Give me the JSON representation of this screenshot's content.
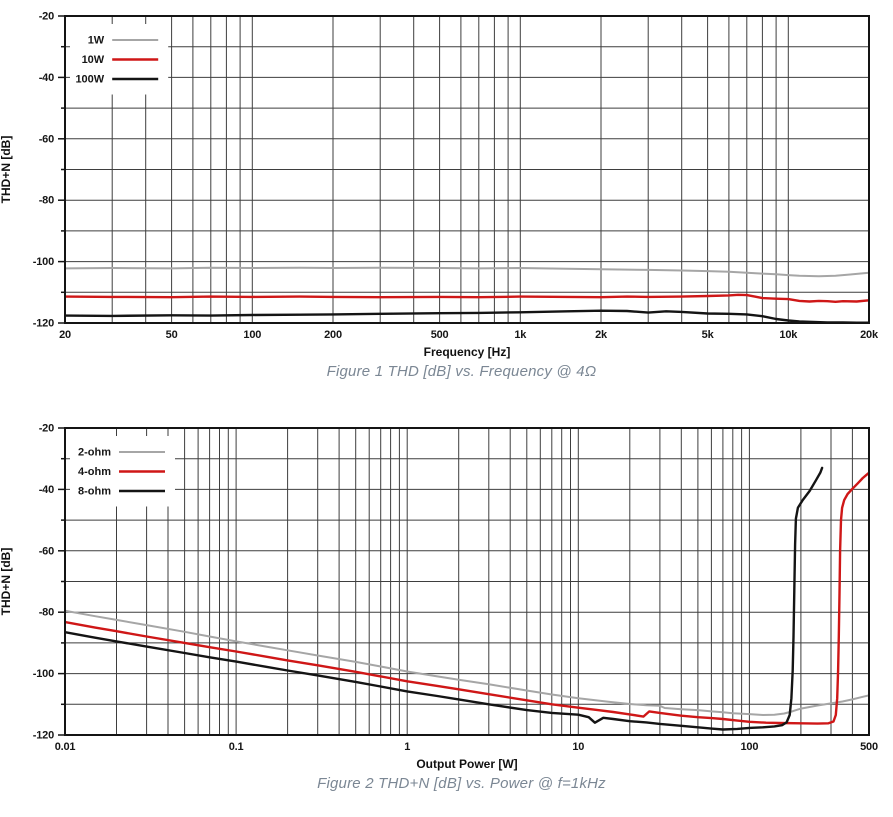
{
  "page_background": "#ffffff",
  "chart_data": [
    {
      "type": "line",
      "caption": "Figure 1 THD [dB] vs. Frequency @ 4Ω",
      "xlabel": "Frequency [Hz]",
      "ylabel": "THD+N [dB]",
      "x_scale": "log",
      "xlim": [
        20,
        20000
      ],
      "ylim": [
        -120,
        -20
      ],
      "grid": true,
      "y_grid_step": 10,
      "legend_position": "top-left",
      "grid_color": "#3e3e3e",
      "axis_color": "#141414",
      "x_ticks": [
        {
          "value": 20,
          "label": "20"
        },
        {
          "value": 50,
          "label": "50"
        },
        {
          "value": 100,
          "label": "100"
        },
        {
          "value": 200,
          "label": "200"
        },
        {
          "value": 500,
          "label": "500"
        },
        {
          "value": 1000,
          "label": "1k"
        },
        {
          "value": 2000,
          "label": "2k"
        },
        {
          "value": 5000,
          "label": "5k"
        },
        {
          "value": 10000,
          "label": "10k"
        },
        {
          "value": 20000,
          "label": "20k"
        }
      ],
      "y_ticks": [
        {
          "value": -20,
          "label": "-20"
        },
        {
          "value": -40,
          "label": "-40"
        },
        {
          "value": -60,
          "label": "-60"
        },
        {
          "value": -80,
          "label": "-80"
        },
        {
          "value": -100,
          "label": "-100"
        },
        {
          "value": -120,
          "label": "-120"
        }
      ],
      "series": [
        {
          "name": "1W",
          "color": "#a6a6a6",
          "width": 2,
          "points": [
            [
              20,
              -102.2
            ],
            [
              30,
              -102.1
            ],
            [
              50,
              -102.2
            ],
            [
              70,
              -102.0
            ],
            [
              100,
              -102.1
            ],
            [
              150,
              -102.0
            ],
            [
              200,
              -102.1
            ],
            [
              300,
              -102.0
            ],
            [
              500,
              -102.1
            ],
            [
              700,
              -102.2
            ],
            [
              1000,
              -102.1
            ],
            [
              1500,
              -102.3
            ],
            [
              2000,
              -102.5
            ],
            [
              3000,
              -102.7
            ],
            [
              4000,
              -102.9
            ],
            [
              5000,
              -103.1
            ],
            [
              6000,
              -103.3
            ],
            [
              7000,
              -103.6
            ],
            [
              8000,
              -103.9
            ],
            [
              9000,
              -104.1
            ],
            [
              10000,
              -104.4
            ],
            [
              11000,
              -104.6
            ],
            [
              13000,
              -104.8
            ],
            [
              15000,
              -104.6
            ],
            [
              17000,
              -104.2
            ],
            [
              20000,
              -103.6
            ]
          ]
        },
        {
          "name": "10W",
          "color": "#cf1717",
          "width": 2.4,
          "points": [
            [
              20,
              -111.4
            ],
            [
              30,
              -111.5
            ],
            [
              50,
              -111.6
            ],
            [
              70,
              -111.4
            ],
            [
              100,
              -111.5
            ],
            [
              150,
              -111.4
            ],
            [
              200,
              -111.5
            ],
            [
              300,
              -111.6
            ],
            [
              500,
              -111.5
            ],
            [
              700,
              -111.6
            ],
            [
              1000,
              -111.4
            ],
            [
              1500,
              -111.5
            ],
            [
              2000,
              -111.6
            ],
            [
              2500,
              -111.4
            ],
            [
              3000,
              -111.5
            ],
            [
              4000,
              -111.4
            ],
            [
              5000,
              -111.2
            ],
            [
              6000,
              -111.0
            ],
            [
              6500,
              -110.8
            ],
            [
              7000,
              -110.9
            ],
            [
              7500,
              -111.4
            ],
            [
              8000,
              -111.9
            ],
            [
              9000,
              -112.1
            ],
            [
              10000,
              -112.2
            ],
            [
              11000,
              -112.8
            ],
            [
              12000,
              -113.0
            ],
            [
              13000,
              -112.8
            ],
            [
              14000,
              -112.9
            ],
            [
              15000,
              -113.1
            ],
            [
              16000,
              -112.9
            ],
            [
              18000,
              -113.0
            ],
            [
              20000,
              -112.6
            ]
          ]
        },
        {
          "name": "100W",
          "color": "#141414",
          "width": 2.4,
          "points": [
            [
              20,
              -117.6
            ],
            [
              30,
              -117.7
            ],
            [
              50,
              -117.5
            ],
            [
              70,
              -117.6
            ],
            [
              100,
              -117.4
            ],
            [
              150,
              -117.3
            ],
            [
              200,
              -117.2
            ],
            [
              300,
              -117.0
            ],
            [
              500,
              -116.8
            ],
            [
              700,
              -116.7
            ],
            [
              1000,
              -116.5
            ],
            [
              1500,
              -116.2
            ],
            [
              2000,
              -116.0
            ],
            [
              2500,
              -116.1
            ],
            [
              3000,
              -116.6
            ],
            [
              3500,
              -116.2
            ],
            [
              4000,
              -116.4
            ],
            [
              5000,
              -116.9
            ],
            [
              6000,
              -117.0
            ],
            [
              7000,
              -117.2
            ],
            [
              8000,
              -117.8
            ],
            [
              9000,
              -118.7
            ],
            [
              10000,
              -119.2
            ],
            [
              11000,
              -119.5
            ],
            [
              12000,
              -119.6
            ],
            [
              14000,
              -119.8
            ],
            [
              16000,
              -119.8
            ],
            [
              18000,
              -119.9
            ],
            [
              20000,
              -119.9
            ]
          ]
        }
      ]
    },
    {
      "type": "line",
      "caption": "Figure 2 THD+N [dB] vs. Power @ f=1kHz",
      "xlabel": "Output Power [W]",
      "ylabel": "THD+N [dB]",
      "x_scale": "log",
      "xlim": [
        0.01,
        500
      ],
      "ylim": [
        -120,
        -20
      ],
      "grid": true,
      "y_grid_step": 10,
      "legend_position": "top-left",
      "grid_color": "#3e3e3e",
      "axis_color": "#141414",
      "x_ticks": [
        {
          "value": 0.01,
          "label": "0.01"
        },
        {
          "value": 0.1,
          "label": "0.1"
        },
        {
          "value": 1,
          "label": "1"
        },
        {
          "value": 10,
          "label": "10"
        },
        {
          "value": 100,
          "label": "100"
        },
        {
          "value": 500,
          "label": "500"
        }
      ],
      "y_ticks": [
        {
          "value": -20,
          "label": "-20"
        },
        {
          "value": -40,
          "label": "-40"
        },
        {
          "value": -60,
          "label": "-60"
        },
        {
          "value": -80,
          "label": "-80"
        },
        {
          "value": -100,
          "label": "-100"
        },
        {
          "value": -120,
          "label": "-120"
        }
      ],
      "series": [
        {
          "name": "2-ohm",
          "color": "#a6a6a6",
          "width": 2,
          "points": [
            [
              0.01,
              -79.5
            ],
            [
              0.015,
              -81.3
            ],
            [
              0.02,
              -82.5
            ],
            [
              0.03,
              -84.2
            ],
            [
              0.05,
              -86.4
            ],
            [
              0.07,
              -87.9
            ],
            [
              0.1,
              -89.5
            ],
            [
              0.15,
              -91.2
            ],
            [
              0.2,
              -92.4
            ],
            [
              0.3,
              -94.1
            ],
            [
              0.5,
              -96.2
            ],
            [
              0.7,
              -97.7
            ],
            [
              1,
              -99.3
            ],
            [
              1.5,
              -100.9
            ],
            [
              2,
              -102.0
            ],
            [
              3,
              -103.5
            ],
            [
              5,
              -105.5
            ],
            [
              7,
              -106.8
            ],
            [
              10,
              -108.0
            ],
            [
              15,
              -109.2
            ],
            [
              20,
              -109.9
            ],
            [
              25,
              -110.3
            ],
            [
              30,
              -110.5
            ],
            [
              32,
              -111.2
            ],
            [
              40,
              -111.6
            ],
            [
              50,
              -111.9
            ],
            [
              60,
              -112.3
            ],
            [
              70,
              -112.6
            ],
            [
              80,
              -112.9
            ],
            [
              100,
              -113.2
            ],
            [
              120,
              -113.5
            ],
            [
              140,
              -113.4
            ],
            [
              160,
              -113.0
            ],
            [
              180,
              -112.2
            ],
            [
              200,
              -111.4
            ],
            [
              250,
              -110.4
            ],
            [
              300,
              -109.7
            ],
            [
              350,
              -109.1
            ],
            [
              400,
              -108.4
            ],
            [
              450,
              -107.7
            ],
            [
              500,
              -107.1
            ]
          ]
        },
        {
          "name": "4-ohm",
          "color": "#cf1717",
          "width": 2.4,
          "points": [
            [
              0.01,
              -83.2
            ],
            [
              0.015,
              -85.0
            ],
            [
              0.02,
              -86.2
            ],
            [
              0.03,
              -87.9
            ],
            [
              0.05,
              -90.0
            ],
            [
              0.07,
              -91.4
            ],
            [
              0.1,
              -92.8
            ],
            [
              0.15,
              -94.5
            ],
            [
              0.2,
              -95.7
            ],
            [
              0.3,
              -97.3
            ],
            [
              0.5,
              -99.4
            ],
            [
              0.7,
              -100.9
            ],
            [
              1,
              -102.5
            ],
            [
              1.5,
              -104.0
            ],
            [
              2,
              -105.1
            ],
            [
              3,
              -106.7
            ],
            [
              5,
              -108.7
            ],
            [
              7,
              -110.0
            ],
            [
              10,
              -111.1
            ],
            [
              13,
              -111.9
            ],
            [
              16,
              -112.5
            ],
            [
              20,
              -113.3
            ],
            [
              24,
              -114.0
            ],
            [
              26,
              -112.3
            ],
            [
              30,
              -112.8
            ],
            [
              35,
              -113.3
            ],
            [
              40,
              -113.7
            ],
            [
              50,
              -114.2
            ],
            [
              60,
              -114.5
            ],
            [
              70,
              -114.8
            ],
            [
              85,
              -115.3
            ],
            [
              100,
              -115.7
            ],
            [
              125,
              -116.0
            ],
            [
              150,
              -116.1
            ],
            [
              200,
              -116.2
            ],
            [
              250,
              -116.3
            ],
            [
              290,
              -116.2
            ],
            [
              310,
              -115.6
            ],
            [
              320,
              -113.5
            ],
            [
              326,
              -108.0
            ],
            [
              330,
              -99.0
            ],
            [
              333,
              -88.0
            ],
            [
              336,
              -74.0
            ],
            [
              339,
              -60.0
            ],
            [
              343,
              -50.0
            ],
            [
              348,
              -46.0
            ],
            [
              358,
              -43.5
            ],
            [
              375,
              -41.5
            ],
            [
              400,
              -39.8
            ],
            [
              430,
              -38.0
            ],
            [
              460,
              -36.3
            ],
            [
              485,
              -35.2
            ],
            [
              500,
              -34.6
            ]
          ]
        },
        {
          "name": "8-ohm",
          "color": "#141414",
          "width": 2.4,
          "points": [
            [
              0.01,
              -86.5
            ],
            [
              0.015,
              -88.3
            ],
            [
              0.02,
              -89.5
            ],
            [
              0.03,
              -91.2
            ],
            [
              0.05,
              -93.3
            ],
            [
              0.07,
              -94.7
            ],
            [
              0.1,
              -96.1
            ],
            [
              0.15,
              -97.8
            ],
            [
              0.2,
              -99.0
            ],
            [
              0.3,
              -100.6
            ],
            [
              0.5,
              -102.7
            ],
            [
              0.7,
              -104.2
            ],
            [
              1,
              -105.8
            ],
            [
              1.5,
              -107.3
            ],
            [
              2,
              -108.4
            ],
            [
              3,
              -110.0
            ],
            [
              5,
              -111.9
            ],
            [
              7,
              -112.8
            ],
            [
              10,
              -113.4
            ],
            [
              11.5,
              -114.2
            ],
            [
              12.5,
              -116.0
            ],
            [
              14,
              -114.4
            ],
            [
              16,
              -114.8
            ],
            [
              20,
              -115.5
            ],
            [
              25,
              -115.9
            ],
            [
              30,
              -116.4
            ],
            [
              40,
              -117.0
            ],
            [
              50,
              -117.5
            ],
            [
              60,
              -117.9
            ],
            [
              70,
              -118.2
            ],
            [
              85,
              -118.0
            ],
            [
              100,
              -117.7
            ],
            [
              120,
              -117.5
            ],
            [
              140,
              -117.2
            ],
            [
              155,
              -116.8
            ],
            [
              165,
              -115.9
            ],
            [
              172,
              -113.5
            ],
            [
              176,
              -108.0
            ],
            [
              179,
              -99.0
            ],
            [
              181,
              -88.0
            ],
            [
              183,
              -73.0
            ],
            [
              185,
              -58.0
            ],
            [
              187,
              -49.5
            ],
            [
              192,
              -46.0
            ],
            [
              205,
              -43.5
            ],
            [
              225,
              -40.5
            ],
            [
              245,
              -37.0
            ],
            [
              260,
              -34.5
            ],
            [
              266,
              -33.0
            ]
          ]
        }
      ]
    }
  ]
}
